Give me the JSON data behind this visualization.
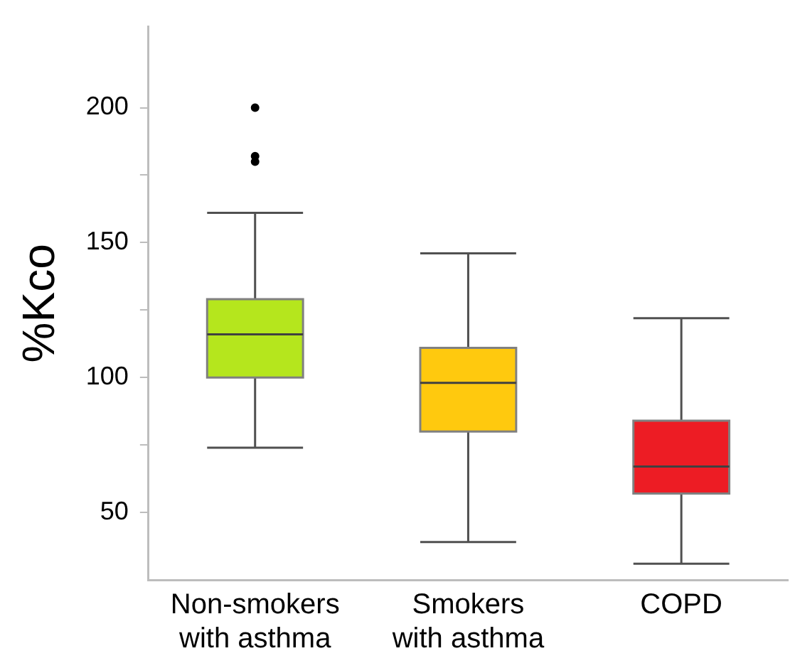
{
  "chart_data": {
    "type": "box",
    "ylabel": "%Kco",
    "categories": [
      "Non-smokers\nwith asthma",
      "Smokers\nwith asthma",
      "COPD"
    ],
    "colors": [
      "#b5e61d",
      "#ffc90e",
      "#ed1c24"
    ],
    "boxes": [
      {
        "low": 74,
        "q1": 100,
        "median": 116,
        "q3": 129,
        "high": 161,
        "outliers": [
          180,
          182,
          200
        ]
      },
      {
        "low": 39,
        "q1": 80,
        "median": 98,
        "q3": 111,
        "high": 146
      },
      {
        "low": 31,
        "q1": 57,
        "median": 67,
        "q3": 84,
        "high": 122
      }
    ],
    "ylim": [
      25,
      230
    ],
    "yticks": [
      50,
      {
        "value": 75,
        "label": null
      },
      100,
      {
        "value": 125,
        "label": null
      },
      150,
      {
        "value": 175,
        "label": null
      },
      200
    ],
    "grid": false,
    "legend": false
  }
}
